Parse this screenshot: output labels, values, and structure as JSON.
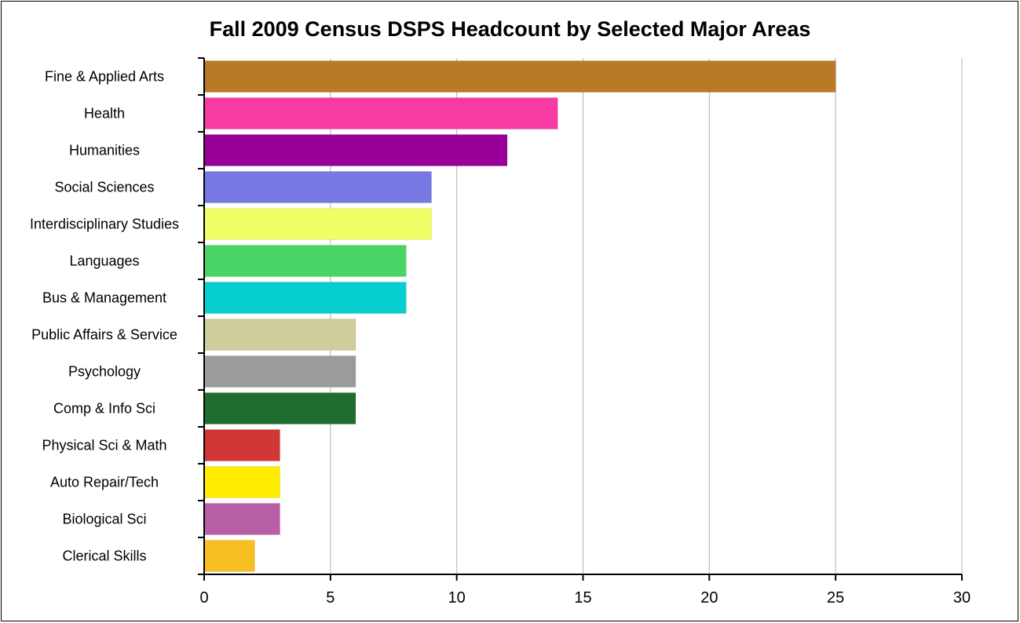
{
  "chart_data": {
    "type": "bar",
    "orientation": "horizontal",
    "title": "Fall 2009 Census DSPS Headcount by Selected Major Areas",
    "xlabel": "",
    "ylabel": "",
    "xlim": [
      0,
      30
    ],
    "x_ticks": [
      0,
      5,
      10,
      15,
      20,
      25,
      30
    ],
    "grid": "vertical",
    "legend": "none",
    "categories": [
      "Fine & Applied Arts",
      "Health",
      "Humanities",
      "Social Sciences",
      "Interdisciplinary Studies",
      "Languages",
      "Bus & Management",
      "Public Affairs & Service",
      "Psychology",
      "Comp & Info Sci",
      "Physical Sci & Math",
      "Auto Repair/Tech",
      "Biological Sci",
      "Clerical Skills"
    ],
    "values": [
      25,
      14,
      12,
      9,
      9,
      8,
      8,
      6,
      6,
      6,
      3,
      3,
      3,
      2
    ],
    "colors": [
      "#b87a26",
      "#f83aa3",
      "#980098",
      "#7878e2",
      "#f0ff68",
      "#4bd466",
      "#07cfcf",
      "#cfcd9b",
      "#9b9b9b",
      "#1f6d2f",
      "#d03636",
      "#ffec00",
      "#b85fa8",
      "#f8bf22"
    ]
  }
}
